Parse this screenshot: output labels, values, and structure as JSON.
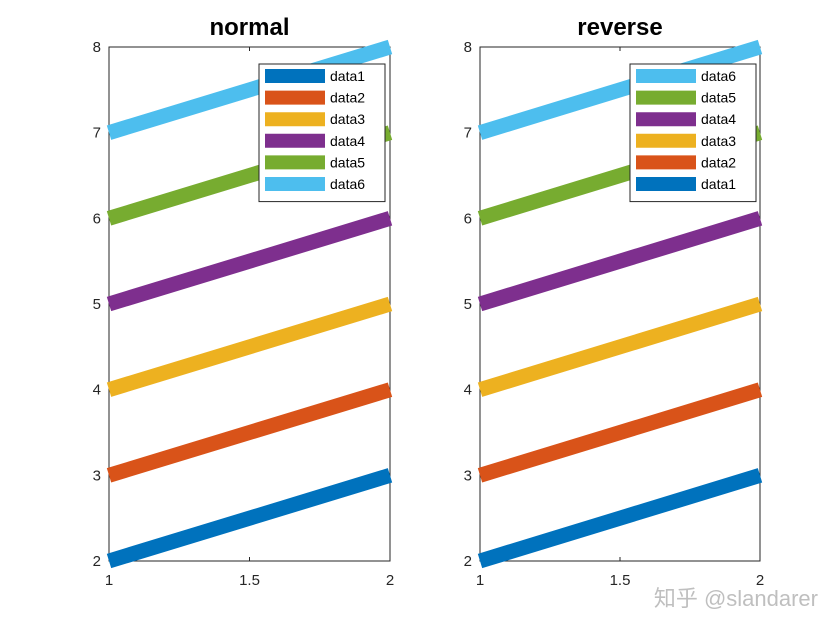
{
  "chart_data": [
    {
      "type": "line",
      "title": "normal",
      "xlabel": "",
      "ylabel": "",
      "xlim": [
        1,
        2
      ],
      "ylim": [
        2,
        8
      ],
      "x_ticks": [
        "1",
        "1.5",
        "2"
      ],
      "y_ticks": [
        "2",
        "3",
        "4",
        "5",
        "6",
        "7",
        "8"
      ],
      "grid": false,
      "legend_position": "top-right",
      "legend_order": "normal",
      "series": [
        {
          "name": "data1",
          "x": [
            1,
            2
          ],
          "y": [
            2,
            3
          ],
          "color": "#0072BD"
        },
        {
          "name": "data2",
          "x": [
            1,
            2
          ],
          "y": [
            3,
            4
          ],
          "color": "#D95319"
        },
        {
          "name": "data3",
          "x": [
            1,
            2
          ],
          "y": [
            4,
            5
          ],
          "color": "#EDB120"
        },
        {
          "name": "data4",
          "x": [
            1,
            2
          ],
          "y": [
            5,
            6
          ],
          "color": "#7E2F8E"
        },
        {
          "name": "data5",
          "x": [
            1,
            2
          ],
          "y": [
            6,
            7
          ],
          "color": "#77AC30"
        },
        {
          "name": "data6",
          "x": [
            1,
            2
          ],
          "y": [
            7,
            8
          ],
          "color": "#4DBEEE"
        }
      ]
    },
    {
      "type": "line",
      "title": "reverse",
      "xlabel": "",
      "ylabel": "",
      "xlim": [
        1,
        2
      ],
      "ylim": [
        2,
        8
      ],
      "x_ticks": [
        "1",
        "1.5",
        "2"
      ],
      "y_ticks": [
        "2",
        "3",
        "4",
        "5",
        "6",
        "7",
        "8"
      ],
      "grid": false,
      "legend_position": "top-right",
      "legend_order": "reverse",
      "series": [
        {
          "name": "data1",
          "x": [
            1,
            2
          ],
          "y": [
            2,
            3
          ],
          "color": "#0072BD"
        },
        {
          "name": "data2",
          "x": [
            1,
            2
          ],
          "y": [
            3,
            4
          ],
          "color": "#D95319"
        },
        {
          "name": "data3",
          "x": [
            1,
            2
          ],
          "y": [
            4,
            5
          ],
          "color": "#EDB120"
        },
        {
          "name": "data4",
          "x": [
            1,
            2
          ],
          "y": [
            5,
            6
          ],
          "color": "#7E2F8E"
        },
        {
          "name": "data5",
          "x": [
            1,
            2
          ],
          "y": [
            6,
            7
          ],
          "color": "#77AC30"
        },
        {
          "name": "data6",
          "x": [
            1,
            2
          ],
          "y": [
            7,
            8
          ],
          "color": "#4DBEEE"
        }
      ]
    }
  ],
  "watermark": "知乎 @slandarer"
}
